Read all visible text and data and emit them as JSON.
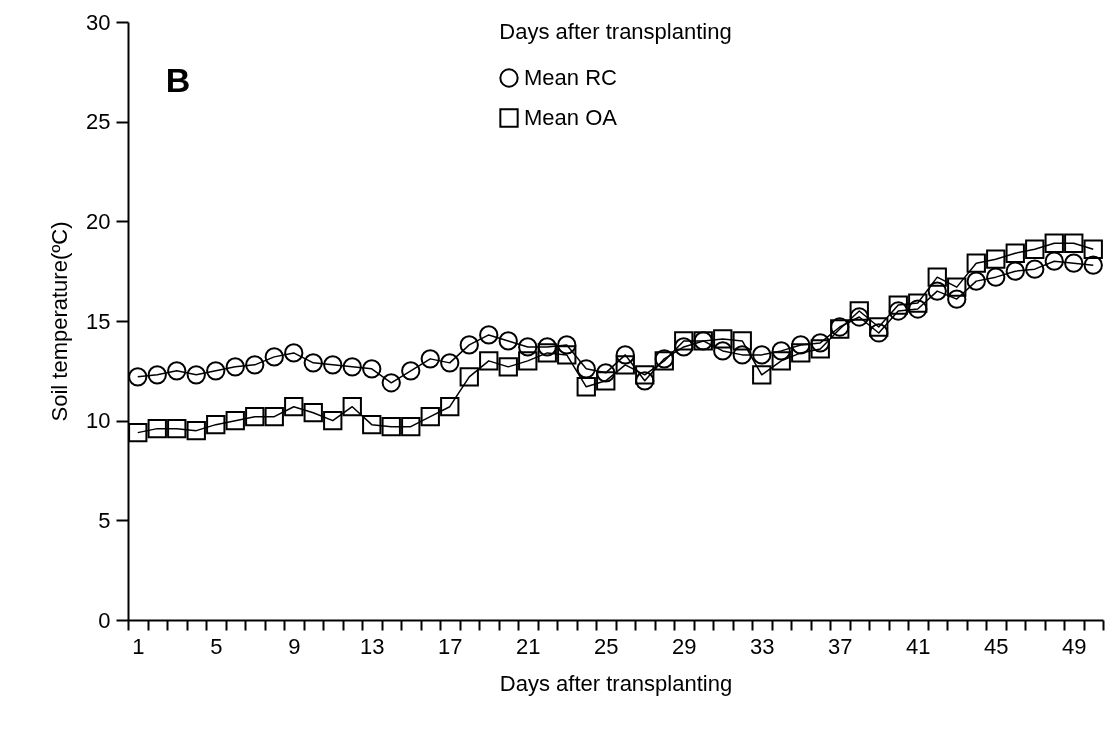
{
  "chart_data": {
    "type": "line",
    "title": "Days after transplanting",
    "xlabel": "Days after transplanting",
    "ylabel": "Soil temperature(ºC)",
    "annotations": [
      "B"
    ],
    "categories": [
      "1",
      null,
      null,
      null,
      "5",
      null,
      null,
      null,
      "9",
      null,
      null,
      null,
      "13",
      null,
      null,
      null,
      "17",
      null,
      null,
      null,
      "21",
      null,
      null,
      null,
      "25",
      null,
      null,
      null,
      "29",
      null,
      null,
      null,
      "33",
      null,
      null,
      null,
      "37",
      null,
      null,
      null,
      "41",
      null,
      null,
      null,
      "45",
      null,
      null,
      null,
      "49",
      null
    ],
    "series": [
      {
        "name": "Mean RC",
        "color": "#000000",
        "marker": "circle",
        "line_style": "solid",
        "values": [
          12.2,
          12.3,
          12.5,
          12.3,
          12.5,
          12.7,
          12.8,
          13.2,
          13.4,
          12.9,
          12.8,
          12.7,
          12.6,
          11.9,
          12.5,
          13.1,
          12.9,
          13.8,
          14.3,
          14.0,
          13.7,
          13.7,
          13.8,
          12.6,
          12.4,
          13.3,
          12.0,
          13.1,
          13.7,
          14.0,
          13.5,
          13.3,
          13.3,
          13.5,
          13.8,
          13.9,
          14.7,
          15.2,
          14.4,
          15.5,
          15.6,
          16.5,
          16.1,
          17.0,
          17.2,
          17.5,
          17.6,
          18.0,
          17.9,
          17.8
        ]
      },
      {
        "name": "Mean OA",
        "color": "#000000",
        "marker": "square",
        "line_style": "solid",
        "values": [
          9.4,
          9.6,
          9.6,
          9.5,
          9.8,
          10.0,
          10.2,
          10.2,
          10.7,
          10.4,
          10.0,
          10.7,
          9.8,
          9.7,
          9.7,
          10.2,
          10.7,
          12.2,
          13.0,
          12.7,
          13.0,
          13.4,
          13.3,
          11.7,
          12.0,
          12.8,
          12.3,
          13.0,
          14.0,
          14.0,
          14.1,
          14.0,
          12.3,
          13.0,
          13.4,
          13.6,
          14.6,
          15.5,
          14.7,
          15.8,
          15.9,
          17.2,
          16.7,
          17.9,
          18.1,
          18.4,
          18.6,
          18.9,
          18.9,
          18.6
        ]
      }
    ],
    "ylim": [
      0,
      30
    ],
    "yticks": [
      0,
      5,
      10,
      15,
      20,
      25,
      30
    ],
    "grid": false,
    "legend": "top"
  }
}
